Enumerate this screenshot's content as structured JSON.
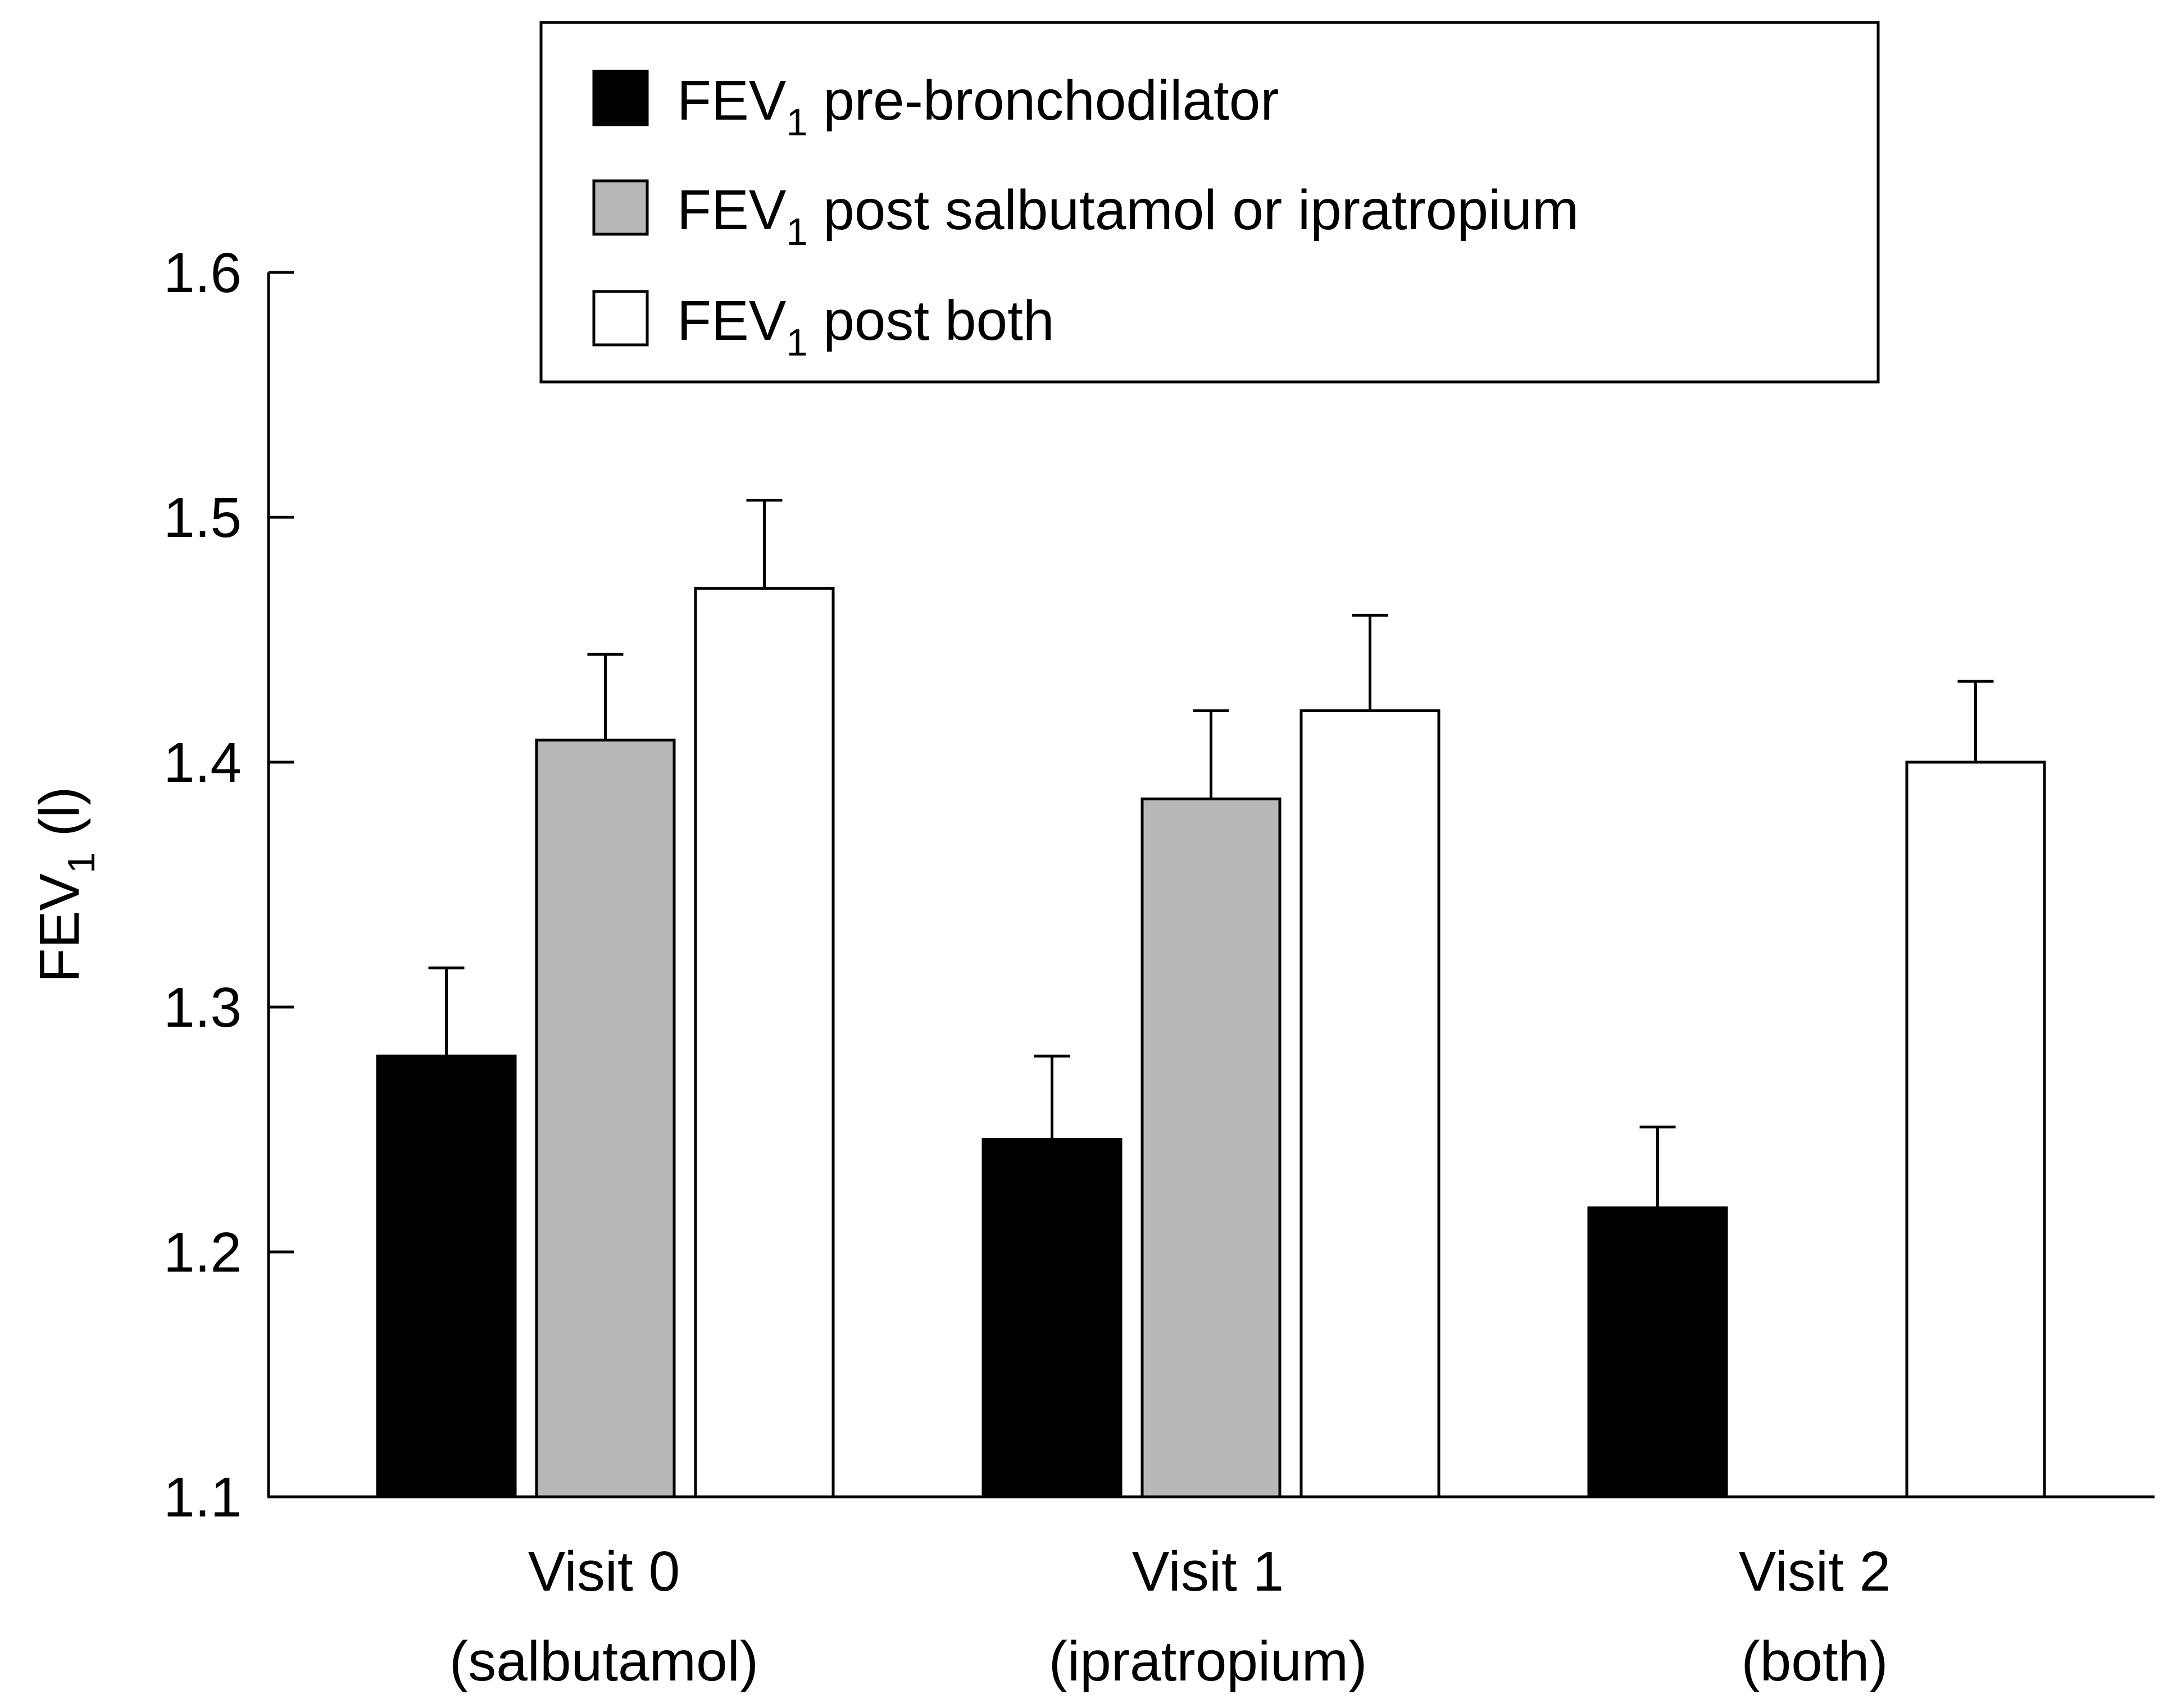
{
  "chart_data": {
    "type": "bar",
    "title": "",
    "ylabel": {
      "main": "FEV",
      "sub": "1",
      "suffix": " (l)"
    },
    "xlabel": "",
    "ylim": [
      1.1,
      1.6
    ],
    "yticks": [
      1.1,
      1.2,
      1.3,
      1.4,
      1.5,
      1.6
    ],
    "ytick_labels": [
      "1.1",
      "1.2",
      "1.3",
      "1.4",
      "1.5",
      "1.6"
    ],
    "categories": [
      {
        "line1": "Visit 0",
        "line2": "(salbutamol)"
      },
      {
        "line1": "Visit 1",
        "line2": "(ipratropium)"
      },
      {
        "line1": "Visit 2",
        "line2": "(both)"
      }
    ],
    "series": [
      {
        "name": "FEV1 pre-bronchodilator",
        "legend": {
          "main": "FEV",
          "sub": "1",
          "rest": " pre-bronchodilator"
        },
        "color": "#000000",
        "values": [
          1.28,
          1.246,
          1.218
        ],
        "errors": [
          0.036,
          0.034,
          0.033
        ]
      },
      {
        "name": "FEV1 post salbutamol or ipratropium",
        "legend": {
          "main": "FEV",
          "sub": "1",
          "rest": " post salbutamol or ipratropium"
        },
        "color": "#b8b8b8",
        "values": [
          1.409,
          1.385,
          null
        ],
        "errors": [
          0.035,
          0.036,
          null
        ]
      },
      {
        "name": "FEV1 post both",
        "legend": {
          "main": "FEV",
          "sub": "1",
          "rest": " post both"
        },
        "color": "#ffffff",
        "values": [
          1.471,
          1.421,
          1.4
        ],
        "errors": [
          0.036,
          0.039,
          0.033
        ]
      }
    ],
    "legend_position": "top-center",
    "grid": false
  }
}
